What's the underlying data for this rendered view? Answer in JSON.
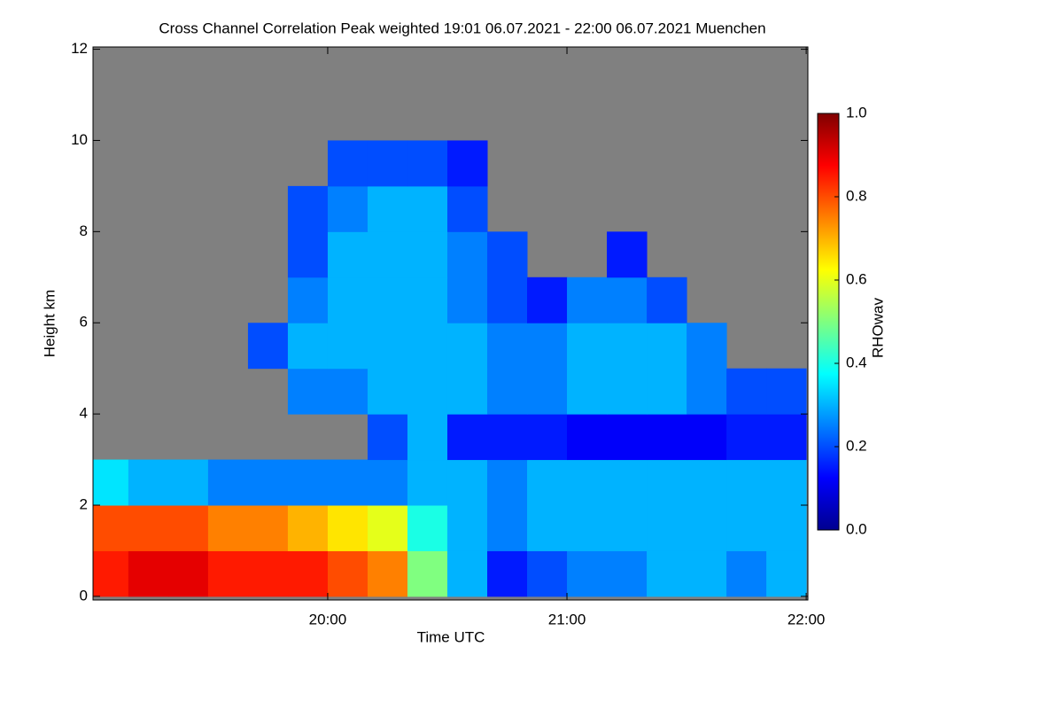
{
  "chart_data": {
    "type": "heatmap",
    "title": "Cross Channel Correlation Peak weighted   19:01 06.07.2021 - 22:00 06.07.2021 Muenchen",
    "x_label": "Time UTC",
    "y_label": "Height km",
    "colorbar_label": "RHOwav",
    "colormap": "jet",
    "missing_color": "#808080",
    "xlim": [
      19.019,
      22.007
    ],
    "xticks": [
      {
        "value": 20,
        "label": "20:00"
      },
      {
        "value": 21,
        "label": "21:00"
      },
      {
        "value": 22,
        "label": "22:00"
      }
    ],
    "ylim": [
      -0.08,
      12.05
    ],
    "yticks": [
      0,
      2,
      4,
      6,
      8,
      10,
      12
    ],
    "clim": [
      0,
      1
    ],
    "cticks": [
      {
        "value": 0,
        "label": "0.0"
      },
      {
        "value": 0.2,
        "label": "0.2"
      },
      {
        "value": 0.4,
        "label": "0.4"
      },
      {
        "value": 0.6,
        "label": "0.6"
      },
      {
        "value": 0.8,
        "label": "0.8"
      },
      {
        "value": 1,
        "label": "1.0"
      }
    ],
    "xbins": [
      19.0167,
      19.1667,
      19.3333,
      19.5,
      19.6667,
      19.8333,
      20,
      20.1667,
      20.3333,
      20.5,
      20.6667,
      20.8333,
      21,
      21.1667,
      21.3333,
      21.5,
      21.6667,
      21.8333,
      22.0
    ],
    "ybins": [
      0,
      1,
      2,
      3,
      4,
      5,
      6,
      7,
      8,
      9,
      10,
      11,
      12
    ],
    "values": [
      [
        0.85,
        0.9,
        0.9,
        0.85,
        0.85,
        0.85,
        0.8,
        0.75,
        0.5,
        0.3,
        0.15,
        0.2,
        0.25,
        0.25,
        0.3,
        0.3,
        0.25,
        0.3
      ],
      [
        0.8,
        0.8,
        0.8,
        0.75,
        0.75,
        0.7,
        0.65,
        0.6,
        0.4,
        0.3,
        0.25,
        0.3,
        0.3,
        0.3,
        0.3,
        0.3,
        0.3,
        0.3
      ],
      [
        0.35,
        0.3,
        0.3,
        0.25,
        0.25,
        0.25,
        0.25,
        0.25,
        0.3,
        0.3,
        0.25,
        0.3,
        0.3,
        0.3,
        0.3,
        0.3,
        0.3,
        0.3
      ],
      [
        null,
        null,
        null,
        null,
        null,
        null,
        null,
        0.2,
        0.3,
        0.15,
        0.15,
        0.15,
        0.12,
        0.12,
        0.12,
        0.12,
        0.15,
        0.15
      ],
      [
        null,
        null,
        null,
        null,
        null,
        0.25,
        0.25,
        0.3,
        0.3,
        0.3,
        0.25,
        0.25,
        0.3,
        0.3,
        0.3,
        0.25,
        0.2,
        0.2
      ],
      [
        null,
        null,
        null,
        null,
        0.2,
        0.3,
        0.3,
        0.3,
        0.3,
        0.3,
        0.25,
        0.25,
        0.3,
        0.3,
        0.3,
        0.25,
        null,
        null
      ],
      [
        null,
        null,
        null,
        null,
        null,
        0.25,
        0.3,
        0.3,
        0.3,
        0.25,
        0.2,
        0.15,
        0.25,
        0.25,
        0.2,
        null,
        null,
        null
      ],
      [
        null,
        null,
        null,
        null,
        null,
        0.2,
        0.3,
        0.3,
        0.3,
        0.25,
        0.2,
        null,
        null,
        0.15,
        null,
        null,
        null,
        null
      ],
      [
        null,
        null,
        null,
        null,
        null,
        0.2,
        0.25,
        0.3,
        0.3,
        0.2,
        null,
        null,
        null,
        null,
        null,
        null,
        null,
        null
      ],
      [
        null,
        null,
        null,
        null,
        null,
        null,
        0.2,
        0.2,
        0.2,
        0.15,
        null,
        null,
        null,
        null,
        null,
        null,
        null,
        null
      ],
      [
        null,
        null,
        null,
        null,
        null,
        null,
        null,
        null,
        null,
        null,
        null,
        null,
        null,
        null,
        null,
        null,
        null,
        null
      ],
      [
        null,
        null,
        null,
        null,
        null,
        null,
        null,
        null,
        null,
        null,
        null,
        null,
        null,
        null,
        null,
        null,
        null,
        null
      ]
    ]
  }
}
